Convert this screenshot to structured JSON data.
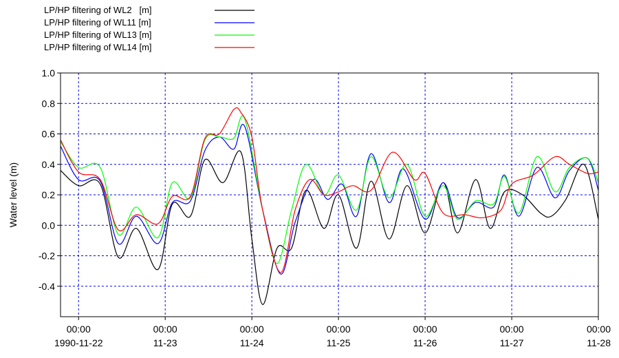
{
  "chart_data": {
    "type": "line",
    "ylabel": "Water level (m)",
    "ylim": [
      -0.6,
      1.0
    ],
    "y_ticks": [
      {
        "value": 1.0,
        "label": "1.0"
      },
      {
        "value": 0.8,
        "label": "0.8"
      },
      {
        "value": 0.6,
        "label": "0.6"
      },
      {
        "value": 0.4,
        "label": "0.4"
      },
      {
        "value": 0.2,
        "label": "0.2"
      },
      {
        "value": 0.0,
        "label": "0.0"
      },
      {
        "value": -0.2,
        "label": "-0.2"
      },
      {
        "value": -0.4,
        "label": "-0.4"
      }
    ],
    "x_ticks": [
      {
        "date": "1990-11-22 00:00",
        "time": "00:00",
        "day": "1990-11-22"
      },
      {
        "date": "1990-11-23 00:00",
        "time": "00:00",
        "day": "11-23"
      },
      {
        "date": "1990-11-24 00:00",
        "time": "00:00",
        "day": "11-24"
      },
      {
        "date": "1990-11-25 00:00",
        "time": "00:00",
        "day": "11-25"
      },
      {
        "date": "1990-11-26 00:00",
        "time": "00:00",
        "day": "11-26"
      },
      {
        "date": "1990-11-27 00:00",
        "time": "00:00",
        "day": "11-27"
      },
      {
        "date": "1990-11-28 00:00",
        "time": "00:00",
        "day": "11-28"
      }
    ],
    "xlim": [
      "1990-11-21 19:00",
      "1990-11-28 00:00"
    ],
    "grid": true,
    "legend_position": "top-left",
    "series": [
      {
        "name": "LP/HP filtering of WL2   [m]",
        "color": "#000000",
        "x": [
          "1990-11-21 19:00",
          "1990-11-22 00:00",
          "1990-11-22 06:00",
          "1990-11-22 11:00",
          "1990-11-22 16:00",
          "1990-11-22 22:00",
          "1990-11-23 02:00",
          "1990-11-23 07:00",
          "1990-11-23 11:00",
          "1990-11-23 16:00",
          "1990-11-23 21:00",
          "1990-11-24 00:00",
          "1990-11-24 03:00",
          "1990-11-24 07:00",
          "1990-11-24 11:00",
          "1990-11-24 15:00",
          "1990-11-24 20:00",
          "1990-11-25 00:00",
          "1990-11-25 05:00",
          "1990-11-25 09:00",
          "1990-11-25 14:00",
          "1990-11-25 19:00",
          "1990-11-26 00:00",
          "1990-11-26 05:00",
          "1990-11-26 09:00",
          "1990-11-26 14:00",
          "1990-11-26 18:00",
          "1990-11-26 22:00",
          "1990-11-27 03:00",
          "1990-11-27 08:00",
          "1990-11-27 11:00",
          "1990-11-27 15:00",
          "1990-11-27 20:00",
          "1990-11-28 00:00"
        ],
        "y": [
          0.36,
          0.26,
          0.27,
          -0.21,
          -0.02,
          -0.29,
          0.14,
          0.06,
          0.43,
          0.28,
          0.48,
          -0.09,
          -0.52,
          -0.15,
          -0.15,
          0.23,
          -0.02,
          0.2,
          -0.15,
          0.29,
          -0.09,
          0.26,
          -0.05,
          0.28,
          -0.05,
          0.3,
          -0.02,
          0.22,
          0.2,
          0.08,
          0.06,
          0.17,
          0.4,
          0.04
        ]
      },
      {
        "name": "LP/HP filtering of WL11 [m]",
        "color": "#0000ff",
        "x": [
          "1990-11-21 19:00",
          "1990-11-22 00:00",
          "1990-11-22 06:00",
          "1990-11-22 11:00",
          "1990-11-22 16:00",
          "1990-11-22 22:00",
          "1990-11-23 02:00",
          "1990-11-23 07:00",
          "1990-11-23 11:00",
          "1990-11-23 15:00",
          "1990-11-23 19:00",
          "1990-11-23 22:00",
          "1990-11-24 03:00",
          "1990-11-24 08:00",
          "1990-11-24 12:00",
          "1990-11-24 17:00",
          "1990-11-24 21:00",
          "1990-11-25 01:00",
          "1990-11-25 05:00",
          "1990-11-25 09:00",
          "1990-11-25 14:00",
          "1990-11-25 18:00",
          "1990-11-26 00:00",
          "1990-11-26 05:00",
          "1990-11-26 09:00",
          "1990-11-26 14:00",
          "1990-11-26 19:00",
          "1990-11-26 22:00",
          "1990-11-27 02:00",
          "1990-11-27 07:00",
          "1990-11-27 12:00",
          "1990-11-27 16:00",
          "1990-11-27 21:00",
          "1990-11-28 00:00"
        ],
        "y": [
          0.52,
          0.3,
          0.29,
          -0.12,
          0.06,
          -0.12,
          0.15,
          0.16,
          0.49,
          0.58,
          0.5,
          0.65,
          0.1,
          -0.32,
          0.02,
          0.3,
          0.17,
          0.27,
          0.06,
          0.47,
          0.15,
          0.37,
          0.04,
          0.28,
          0.05,
          0.15,
          0.12,
          0.33,
          0.06,
          0.38,
          0.18,
          0.36,
          0.44,
          0.23
        ]
      },
      {
        "name": "LP/HP filtering of WL13 [m]",
        "color": "#00ff00",
        "x": [
          "1990-11-21 19:00",
          "1990-11-22 00:00",
          "1990-11-22 06:00",
          "1990-11-22 11:00",
          "1990-11-22 16:00",
          "1990-11-22 22:00",
          "1990-11-23 02:00",
          "1990-11-23 07:00",
          "1990-11-23 11:00",
          "1990-11-23 15:00",
          "1990-11-23 19:00",
          "1990-11-23 22:00",
          "1990-11-24 03:00",
          "1990-11-24 07:00",
          "1990-11-24 11:00",
          "1990-11-24 15:00",
          "1990-11-24 20:00",
          "1990-11-25 00:00",
          "1990-11-25 05:00",
          "1990-11-25 09:00",
          "1990-11-25 14:00",
          "1990-11-25 19:00",
          "1990-11-26 00:00",
          "1990-11-26 05:00",
          "1990-11-26 09:00",
          "1990-11-26 14:00",
          "1990-11-26 19:00",
          "1990-11-26 22:00",
          "1990-11-27 02:00",
          "1990-11-27 07:00",
          "1990-11-27 12:00",
          "1990-11-27 16:00",
          "1990-11-27 21:00",
          "1990-11-28 00:00"
        ],
        "y": [
          0.55,
          0.38,
          0.38,
          -0.06,
          0.12,
          -0.08,
          0.28,
          0.18,
          0.56,
          0.58,
          0.57,
          0.7,
          0.1,
          -0.25,
          0.1,
          0.4,
          0.2,
          0.33,
          0.1,
          0.45,
          0.18,
          0.4,
          0.06,
          0.26,
          0.04,
          0.16,
          0.14,
          0.32,
          0.08,
          0.45,
          0.22,
          0.38,
          0.44,
          0.28
        ]
      },
      {
        "name": "LP/HP filtering of WL14 [m]",
        "color": "#ff0000",
        "x": [
          "1990-11-21 19:00",
          "1990-11-22 00:00",
          "1990-11-22 06:00",
          "1990-11-22 11:00",
          "1990-11-22 16:00",
          "1990-11-22 22:00",
          "1990-11-23 02:00",
          "1990-11-23 07:00",
          "1990-11-23 11:00",
          "1990-11-23 15:00",
          "1990-11-23 19:00",
          "1990-11-23 21:00",
          "1990-11-24 00:00",
          "1990-11-24 03:00",
          "1990-11-24 08:00",
          "1990-11-24 12:00",
          "1990-11-24 16:00",
          "1990-11-24 20:00",
          "1990-11-25 00:00",
          "1990-11-25 04:00",
          "1990-11-25 09:00",
          "1990-11-25 15:00",
          "1990-11-25 21:00",
          "1990-11-26 00:00",
          "1990-11-26 05:00",
          "1990-11-26 11:00",
          "1990-11-26 16:00",
          "1990-11-26 21:00",
          "1990-11-27 00:00",
          "1990-11-27 06:00",
          "1990-11-27 12:00",
          "1990-11-27 16:00",
          "1990-11-27 21:00",
          "1990-11-28 00:00"
        ],
        "y": [
          0.56,
          0.35,
          0.3,
          -0.03,
          0.07,
          0.01,
          0.19,
          0.19,
          0.57,
          0.6,
          0.76,
          0.74,
          0.58,
          0.1,
          -0.31,
          0.1,
          0.3,
          0.2,
          0.22,
          0.26,
          0.23,
          0.48,
          0.3,
          0.34,
          0.08,
          0.07,
          0.05,
          0.1,
          0.27,
          0.33,
          0.45,
          0.4,
          0.34,
          0.35
        ]
      }
    ]
  }
}
